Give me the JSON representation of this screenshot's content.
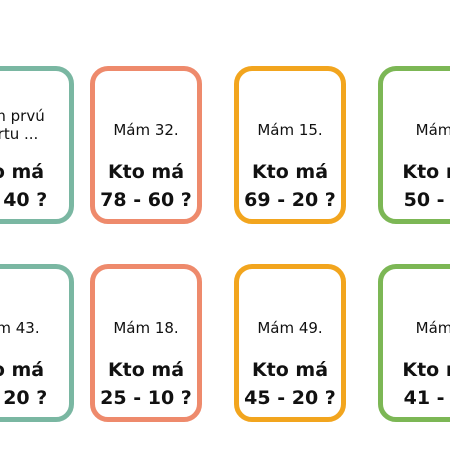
{
  "colors": {
    "teal": "#7ab7a2",
    "salmon": "#ee8a6c",
    "orange": "#f2a51e",
    "green": "#7cb755"
  },
  "cards": [
    {
      "color": "teal",
      "line1": "m prvú\nrtu ...",
      "line2": "o má",
      "line3": "- 40 ?"
    },
    {
      "color": "salmon",
      "line1": "Mám 32.",
      "line2": "Kto má",
      "line3": "78 - 60 ?"
    },
    {
      "color": "orange",
      "line1": "Mám 15.",
      "line2": "Kto má",
      "line3": "69 - 20 ?"
    },
    {
      "color": "green",
      "line1": "Mám",
      "line2": "Kto m",
      "line3": "50 - 2"
    },
    {
      "color": "teal",
      "line1": "m 43.",
      "line2": "o má",
      "line3": "- 20 ?"
    },
    {
      "color": "salmon",
      "line1": "Mám 18.",
      "line2": "Kto má",
      "line3": "25 - 10 ?"
    },
    {
      "color": "orange",
      "line1": "Mám 49.",
      "line2": "Kto má",
      "line3": "45 - 20 ?"
    },
    {
      "color": "green",
      "line1": "Mám",
      "line2": "Kto m",
      "line3": "41 - 3"
    }
  ]
}
